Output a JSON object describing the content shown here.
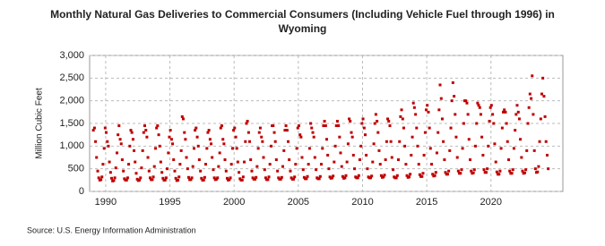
{
  "chart_data": {
    "type": "scatter",
    "title": "Monthly Natural Gas Deliveries to Commercial Consumers (Including Vehicle Fuel through 1996) in Wyoming",
    "y_label": "Million Cubic Feet",
    "source": "Source: U.S. Energy Information Administration",
    "color": "#c00000",
    "grid": true,
    "xlim": [
      1988.75,
      2025.6
    ],
    "xticks": [
      1990,
      1995,
      2000,
      2005,
      2010,
      2015,
      2020
    ],
    "ylim": [
      0,
      3000
    ],
    "yticks": [
      0,
      500,
      {
        "value": 1000,
        "label": "1,000"
      },
      {
        "value": 1500,
        "label": "1,500"
      },
      {
        "value": 2000,
        "label": "2,000"
      },
      {
        "value": 2500,
        "label": "2,500"
      },
      {
        "value": 3000,
        "label": "3,000"
      }
    ],
    "x": [
      1989.04,
      1989.13,
      1989.21,
      1989.29,
      1989.38,
      1989.46,
      1989.54,
      1989.63,
      1989.71,
      1989.79,
      1989.88,
      1989.96,
      1990.04,
      1990.13,
      1990.21,
      1990.29,
      1990.38,
      1990.46,
      1990.54,
      1990.63,
      1990.71,
      1990.79,
      1990.88,
      1990.96,
      1991.04,
      1991.13,
      1991.21,
      1991.29,
      1991.38,
      1991.46,
      1991.54,
      1991.63,
      1991.71,
      1991.79,
      1991.88,
      1991.96,
      1992.04,
      1992.13,
      1992.21,
      1992.29,
      1992.38,
      1992.46,
      1992.54,
      1992.63,
      1992.71,
      1992.79,
      1992.88,
      1992.96,
      1993.04,
      1993.13,
      1993.21,
      1993.29,
      1993.38,
      1993.46,
      1993.54,
      1993.63,
      1993.71,
      1993.79,
      1993.88,
      1993.96,
      1994.04,
      1994.13,
      1994.21,
      1994.29,
      1994.38,
      1994.46,
      1994.54,
      1994.63,
      1994.71,
      1994.79,
      1994.88,
      1994.96,
      1995.04,
      1995.13,
      1995.21,
      1995.29,
      1995.38,
      1995.46,
      1995.54,
      1995.63,
      1995.71,
      1995.79,
      1995.88,
      1995.96,
      1996.04,
      1996.13,
      1996.21,
      1996.29,
      1996.38,
      1996.46,
      1996.54,
      1996.63,
      1996.71,
      1996.79,
      1996.88,
      1996.96,
      1997.04,
      1997.13,
      1997.21,
      1997.29,
      1997.38,
      1997.46,
      1997.54,
      1997.63,
      1997.71,
      1997.79,
      1997.88,
      1997.96,
      1998.04,
      1998.13,
      1998.21,
      1998.29,
      1998.38,
      1998.46,
      1998.54,
      1998.63,
      1998.71,
      1998.79,
      1998.88,
      1998.96,
      1999.04,
      1999.13,
      1999.21,
      1999.29,
      1999.38,
      1999.46,
      1999.54,
      1999.63,
      1999.71,
      1999.79,
      1999.88,
      1999.96,
      2000.04,
      2000.13,
      2000.21,
      2000.29,
      2000.38,
      2000.46,
      2000.54,
      2000.63,
      2000.71,
      2000.79,
      2000.88,
      2000.96,
      2001.04,
      2001.13,
      2001.21,
      2001.29,
      2001.38,
      2001.46,
      2001.54,
      2001.63,
      2001.71,
      2001.79,
      2001.88,
      2001.96,
      2002.04,
      2002.13,
      2002.21,
      2002.29,
      2002.38,
      2002.46,
      2002.54,
      2002.63,
      2002.71,
      2002.79,
      2002.88,
      2002.96,
      2003.04,
      2003.13,
      2003.21,
      2003.29,
      2003.38,
      2003.46,
      2003.54,
      2003.63,
      2003.71,
      2003.79,
      2003.88,
      2003.96,
      2004.04,
      2004.13,
      2004.21,
      2004.29,
      2004.38,
      2004.46,
      2004.54,
      2004.63,
      2004.71,
      2004.79,
      2004.88,
      2004.96,
      2005.04,
      2005.13,
      2005.21,
      2005.29,
      2005.38,
      2005.46,
      2005.54,
      2005.63,
      2005.71,
      2005.79,
      2005.88,
      2005.96,
      2006.04,
      2006.13,
      2006.21,
      2006.29,
      2006.38,
      2006.46,
      2006.54,
      2006.63,
      2006.71,
      2006.79,
      2006.88,
      2006.96,
      2007.04,
      2007.13,
      2007.21,
      2007.29,
      2007.38,
      2007.46,
      2007.54,
      2007.63,
      2007.71,
      2007.79,
      2007.88,
      2007.96,
      2008.04,
      2008.13,
      2008.21,
      2008.29,
      2008.38,
      2008.46,
      2008.54,
      2008.63,
      2008.71,
      2008.79,
      2008.88,
      2008.96,
      2009.04,
      2009.13,
      2009.21,
      2009.29,
      2009.38,
      2009.46,
      2009.54,
      2009.63,
      2009.71,
      2009.79,
      2009.88,
      2009.96,
      2010.04,
      2010.13,
      2010.21,
      2010.29,
      2010.38,
      2010.46,
      2010.54,
      2010.63,
      2010.71,
      2010.79,
      2010.88,
      2010.96,
      2011.04,
      2011.13,
      2011.21,
      2011.29,
      2011.38,
      2011.46,
      2011.54,
      2011.63,
      2011.71,
      2011.79,
      2011.88,
      2011.96,
      2012.04,
      2012.13,
      2012.21,
      2012.29,
      2012.38,
      2012.46,
      2012.54,
      2012.63,
      2012.71,
      2012.79,
      2012.88,
      2012.96,
      2013.04,
      2013.13,
      2013.21,
      2013.29,
      2013.38,
      2013.46,
      2013.54,
      2013.63,
      2013.71,
      2013.79,
      2013.88,
      2013.96,
      2014.04,
      2014.13,
      2014.21,
      2014.29,
      2014.38,
      2014.46,
      2014.54,
      2014.63,
      2014.71,
      2014.79,
      2014.88,
      2014.96,
      2015.04,
      2015.13,
      2015.21,
      2015.29,
      2015.38,
      2015.46,
      2015.54,
      2015.63,
      2015.71,
      2015.79,
      2015.88,
      2015.96,
      2016.04,
      2016.13,
      2016.21,
      2016.29,
      2016.38,
      2016.46,
      2016.54,
      2016.63,
      2016.71,
      2016.79,
      2016.88,
      2016.96,
      2017.04,
      2017.13,
      2017.21,
      2017.29,
      2017.38,
      2017.46,
      2017.54,
      2017.63,
      2017.71,
      2017.79,
      2017.88,
      2017.96,
      2018.04,
      2018.13,
      2018.21,
      2018.29,
      2018.38,
      2018.46,
      2018.54,
      2018.63,
      2018.71,
      2018.79,
      2018.88,
      2018.96,
      2019.04,
      2019.13,
      2019.21,
      2019.29,
      2019.38,
      2019.46,
      2019.54,
      2019.63,
      2019.71,
      2019.79,
      2019.88,
      2019.96,
      2020.04,
      2020.13,
      2020.21,
      2020.29,
      2020.38,
      2020.46,
      2020.54,
      2020.63,
      2020.71,
      2020.79,
      2020.88,
      2020.96,
      2021.04,
      2021.13,
      2021.21,
      2021.29,
      2021.38,
      2021.46,
      2021.54,
      2021.63,
      2021.71,
      2021.79,
      2021.88,
      2021.96,
      2022.04,
      2022.13,
      2022.21,
      2022.29,
      2022.38,
      2022.46,
      2022.54,
      2022.63,
      2022.71,
      2022.79,
      2022.88,
      2022.96,
      2023.04,
      2023.13,
      2023.21,
      2023.29,
      2023.38,
      2023.46,
      2023.54,
      2023.63,
      2023.71,
      2023.79,
      2023.88,
      2023.96,
      2024.04,
      2024.13,
      2024.21,
      2024.29,
      2024.38,
      2024.46
    ],
    "values": [
      1350,
      1400,
      1100,
      750,
      450,
      300,
      250,
      260,
      320,
      600,
      950,
      1400,
      1300,
      1100,
      1000,
      650,
      420,
      290,
      230,
      240,
      300,
      520,
      850,
      1250,
      1450,
      1150,
      1050,
      700,
      450,
      280,
      250,
      250,
      300,
      600,
      1000,
      1350,
      1300,
      1150,
      900,
      650,
      400,
      270,
      240,
      250,
      300,
      520,
      900,
      1300,
      1450,
      1350,
      1200,
      750,
      450,
      300,
      260,
      260,
      320,
      550,
      950,
      1400,
      1450,
      1250,
      1000,
      650,
      420,
      290,
      250,
      250,
      300,
      500,
      850,
      1200,
      1350,
      1150,
      1050,
      700,
      450,
      290,
      240,
      250,
      320,
      600,
      900,
      1650,
      1600,
      1300,
      1150,
      750,
      500,
      310,
      260,
      260,
      300,
      550,
      950,
      1350,
      1400,
      1200,
      1000,
      700,
      450,
      290,
      250,
      250,
      310,
      600,
      950,
      1300,
      1350,
      1150,
      1050,
      750,
      480,
      300,
      260,
      270,
      300,
      550,
      850,
      1400,
      1450,
      1150,
      1050,
      700,
      450,
      290,
      250,
      260,
      300,
      600,
      950,
      1350,
      1400,
      1200,
      950,
      650,
      420,
      280,
      250,
      250,
      320,
      650,
      1100,
      1500,
      1550,
      1300,
      1100,
      700,
      450,
      300,
      270,
      270,
      310,
      550,
      950,
      1300,
      1400,
      1200,
      1100,
      750,
      480,
      300,
      260,
      260,
      320,
      600,
      1000,
      1450,
      1450,
      1300,
      1100,
      700,
      450,
      300,
      270,
      270,
      310,
      550,
      900,
      1350,
      1450,
      1350,
      1100,
      700,
      450,
      300,
      270,
      270,
      320,
      600,
      950,
      1400,
      1450,
      1250,
      1200,
      750,
      480,
      310,
      280,
      280,
      330,
      600,
      950,
      1500,
      1400,
      1300,
      1200,
      750,
      480,
      300,
      280,
      280,
      330,
      600,
      950,
      1450,
      1550,
      1450,
      1150,
      800,
      500,
      320,
      290,
      300,
      340,
      650,
      1000,
      1450,
      1550,
      1450,
      1200,
      850,
      550,
      330,
      290,
      300,
      350,
      650,
      1050,
      1600,
      1550,
      1300,
      1200,
      800,
      500,
      320,
      300,
      300,
      350,
      700,
      1000,
      1500,
      1600,
      1400,
      1250,
      800,
      500,
      320,
      300,
      300,
      340,
      650,
      1050,
      1500,
      1700,
      1550,
      1300,
      900,
      600,
      350,
      310,
      320,
      360,
      700,
      1100,
      1600,
      1550,
      1450,
      1100,
      750,
      480,
      320,
      300,
      300,
      350,
      700,
      1100,
      1650,
      1800,
      1600,
      1400,
      1000,
      600,
      350,
      310,
      320,
      380,
      800,
      1200,
      1950,
      1850,
      1700,
      1400,
      1000,
      600,
      370,
      330,
      330,
      400,
      800,
      1300,
      1800,
      1900,
      1750,
      1400,
      950,
      600,
      380,
      340,
      350,
      420,
      850,
      1300,
      1800,
      2350,
      2050,
      1600,
      1100,
      700,
      420,
      380,
      380,
      450,
      900,
      1400,
      2000,
      2400,
      2100,
      1700,
      1200,
      750,
      450,
      400,
      400,
      480,
      950,
      1500,
      2000,
      2000,
      1950,
      1700,
      1150,
      700,
      450,
      400,
      410,
      480,
      1000,
      1500,
      1950,
      1900,
      1850,
      1700,
      1200,
      800,
      480,
      420,
      420,
      500,
      1000,
      1550,
      1850,
      1900,
      1700,
      1500,
      1050,
      650,
      430,
      380,
      380,
      450,
      950,
      1400,
      1750,
      1800,
      1750,
      1500,
      1100,
      700,
      450,
      400,
      400,
      480,
      950,
      1350,
      1700,
      1900,
      1750,
      1600,
      1150,
      750,
      450,
      400,
      410,
      480,
      900,
      1500,
      1850,
      2150,
      2050,
      2550,
      1700,
      900,
      500,
      420,
      430,
      550,
      1100,
      1600,
      2150,
      2500,
      2100,
      1650,
      1100,
      800,
      500
    ]
  }
}
